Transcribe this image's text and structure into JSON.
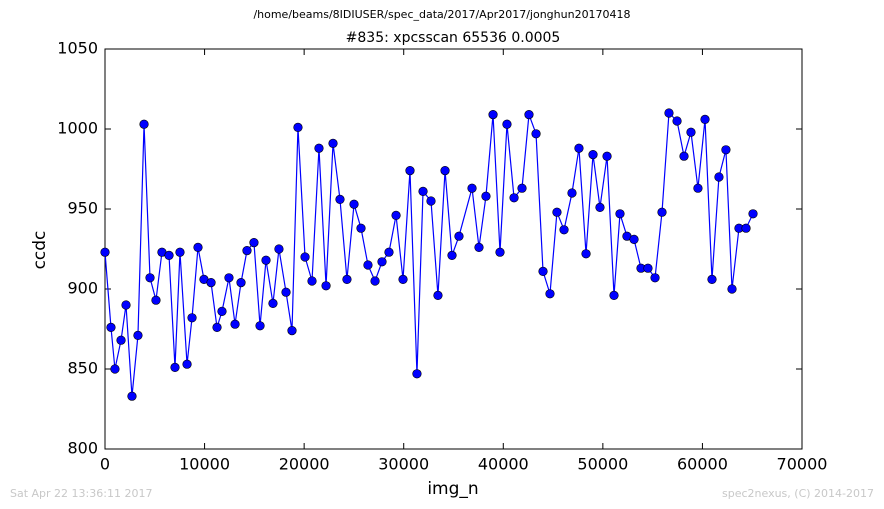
{
  "chart_data": {
    "type": "line",
    "suptitle": "/home/beams/8IDIUSER/spec_data/2017/Apr2017/jonghun20170418",
    "title": "#835: xpcsscan 65536 0.0005",
    "x_label": "img_n",
    "y_label": "ccdc",
    "footer_left": "Sat Apr 22 13:36:11 2017",
    "footer_right": "spec2nexus, (C) 2014-2017",
    "xlim": [
      0,
      70000
    ],
    "ylim": [
      800,
      1050
    ],
    "xticks": [
      0,
      10000,
      20000,
      30000,
      40000,
      50000,
      60000,
      70000
    ],
    "yticks": [
      800,
      850,
      900,
      950,
      1000,
      1050
    ],
    "x": [
      0,
      600,
      1000,
      1610,
      2110,
      2710,
      3310,
      3920,
      4520,
      5120,
      5720,
      6430,
      7030,
      7530,
      8240,
      8740,
      9340,
      9940,
      10650,
      11250,
      11750,
      12450,
      13060,
      13660,
      14260,
      14960,
      15570,
      16170,
      16870,
      17470,
      18180,
      18780,
      19380,
      20090,
      20790,
      21490,
      22200,
      22900,
      23600,
      24300,
      25010,
      25710,
      26410,
      27120,
      27820,
      28520,
      29230,
      29930,
      30630,
      31330,
      31940,
      32740,
      33440,
      34150,
      34850,
      35550,
      36860,
      37560,
      38260,
      38970,
      39670,
      40370,
      41080,
      41880,
      42580,
      43290,
      43990,
      44690,
      45390,
      46100,
      46900,
      47600,
      48310,
      49010,
      49710,
      50420,
      51120,
      51720,
      52420,
      53130,
      53830,
      54530,
      55240,
      55940,
      56640,
      57450,
      58150,
      58850,
      59550,
      60260,
      60960,
      61660,
      62360,
      62970,
      63670,
      64380,
      65080
    ],
    "series": [
      {
        "color": "#0000ff",
        "values": [
          923,
          876,
          850,
          868,
          890,
          833,
          871,
          1003,
          907,
          893,
          923,
          921,
          851,
          923,
          853,
          882,
          926,
          906,
          904,
          876,
          886,
          907,
          878,
          904,
          924,
          929,
          877,
          918,
          891,
          925,
          898,
          874,
          1001,
          920,
          905,
          988,
          902,
          991,
          956,
          906,
          953,
          938,
          915,
          905,
          917,
          923,
          946,
          906,
          974,
          847,
          961,
          955,
          896,
          974,
          921,
          933,
          963,
          926,
          958,
          1009,
          923,
          1003,
          957,
          963,
          1009,
          997,
          911,
          897,
          948,
          937,
          960,
          988,
          922,
          984,
          951,
          983,
          896,
          947,
          933,
          931,
          913,
          913,
          907,
          948,
          1010,
          1005,
          983,
          998,
          963,
          1006,
          906,
          970,
          987,
          900,
          938,
          938,
          947
        ]
      }
    ]
  }
}
